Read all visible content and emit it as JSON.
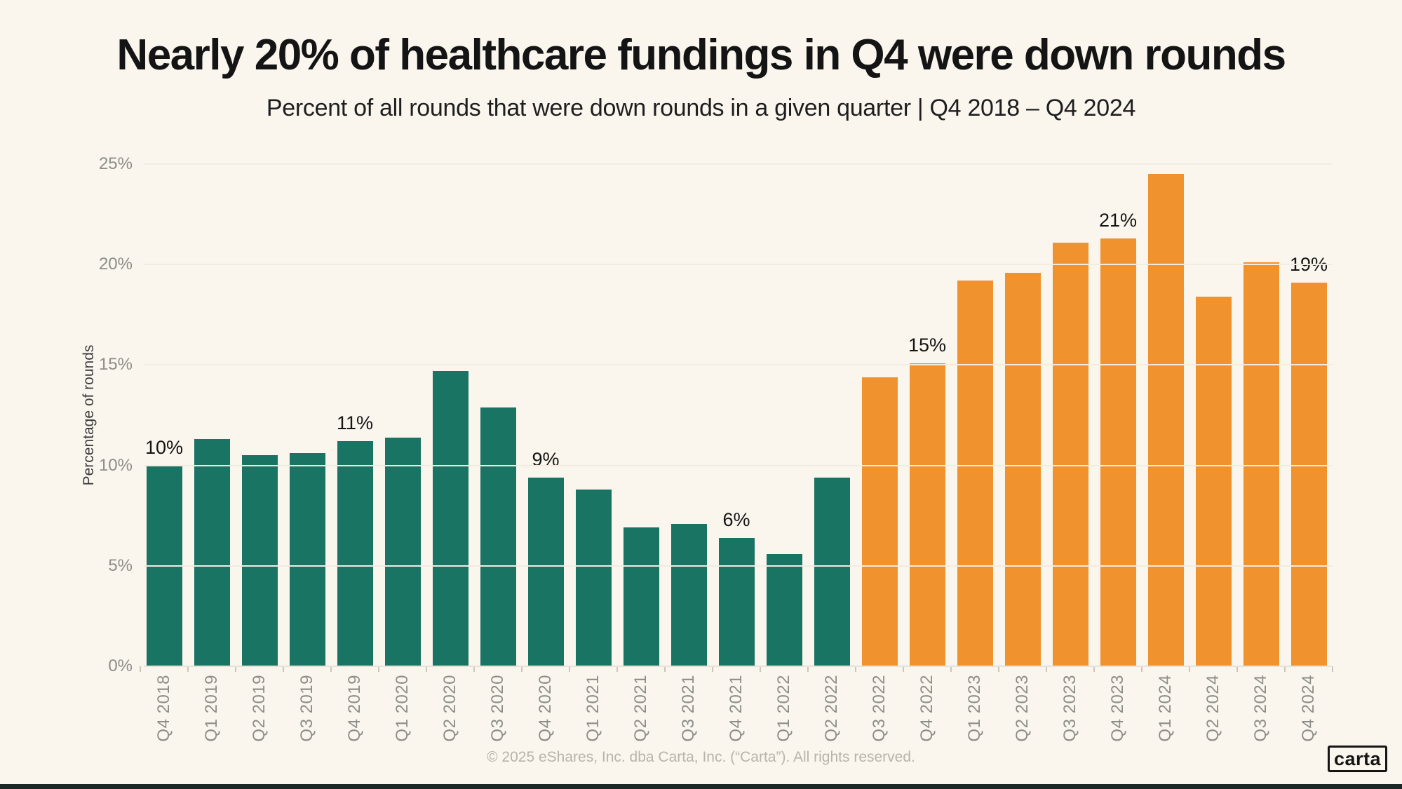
{
  "page": {
    "background_color": "#FAF6EE",
    "bottom_bar_color": "#1B2724"
  },
  "header": {
    "title": "Nearly 20% of healthcare fundings in Q4 were down rounds",
    "subtitle": "Percent of all rounds that were down rounds in a given quarter | Q4 2018 – Q4 2024"
  },
  "chart_data": {
    "type": "bar",
    "title": "Nearly 20% of healthcare fundings in Q4 were down rounds",
    "xlabel": "",
    "ylabel": "Percentage of rounds",
    "ylim": [
      0,
      25
    ],
    "yticks": [
      0,
      5,
      10,
      15,
      20,
      25
    ],
    "ytick_labels": [
      "0%",
      "5%",
      "10%",
      "15%",
      "20%",
      "25%"
    ],
    "grid": true,
    "legend": "none",
    "categories": [
      "Q4 2018",
      "Q1 2019",
      "Q2 2019",
      "Q3 2019",
      "Q4 2019",
      "Q1 2020",
      "Q2 2020",
      "Q3 2020",
      "Q4 2020",
      "Q1 2021",
      "Q2 2021",
      "Q3 2021",
      "Q4 2021",
      "Q1 2022",
      "Q2 2022",
      "Q3 2022",
      "Q4 2022",
      "Q1 2023",
      "Q2 2023",
      "Q3 2023",
      "Q4 2023",
      "Q1 2024",
      "Q2 2024",
      "Q3 2024",
      "Q4 2024"
    ],
    "values": [
      10.0,
      11.3,
      10.5,
      10.6,
      11.2,
      11.4,
      14.7,
      12.9,
      9.4,
      8.8,
      6.9,
      7.1,
      6.4,
      5.6,
      9.4,
      14.4,
      15.1,
      19.2,
      19.6,
      21.1,
      21.3,
      24.5,
      18.4,
      20.1,
      19.1
    ],
    "bar_colors": {
      "early_quarters": "#1A7464",
      "recent_quarters": "#F0922E"
    },
    "first_recent_index": 15,
    "point_labels": [
      {
        "index": 0,
        "text": "10%"
      },
      {
        "index": 4,
        "text": "11%"
      },
      {
        "index": 8,
        "text": "9%"
      },
      {
        "index": 12,
        "text": "6%"
      },
      {
        "index": 16,
        "text": "15%"
      },
      {
        "index": 20,
        "text": "21%"
      },
      {
        "index": 24,
        "text": "19%"
      }
    ]
  },
  "footer": {
    "copyright": "© 2025 eShares, Inc. dba Carta, Inc. (“Carta”). All rights reserved.",
    "logo_text": "carta"
  }
}
